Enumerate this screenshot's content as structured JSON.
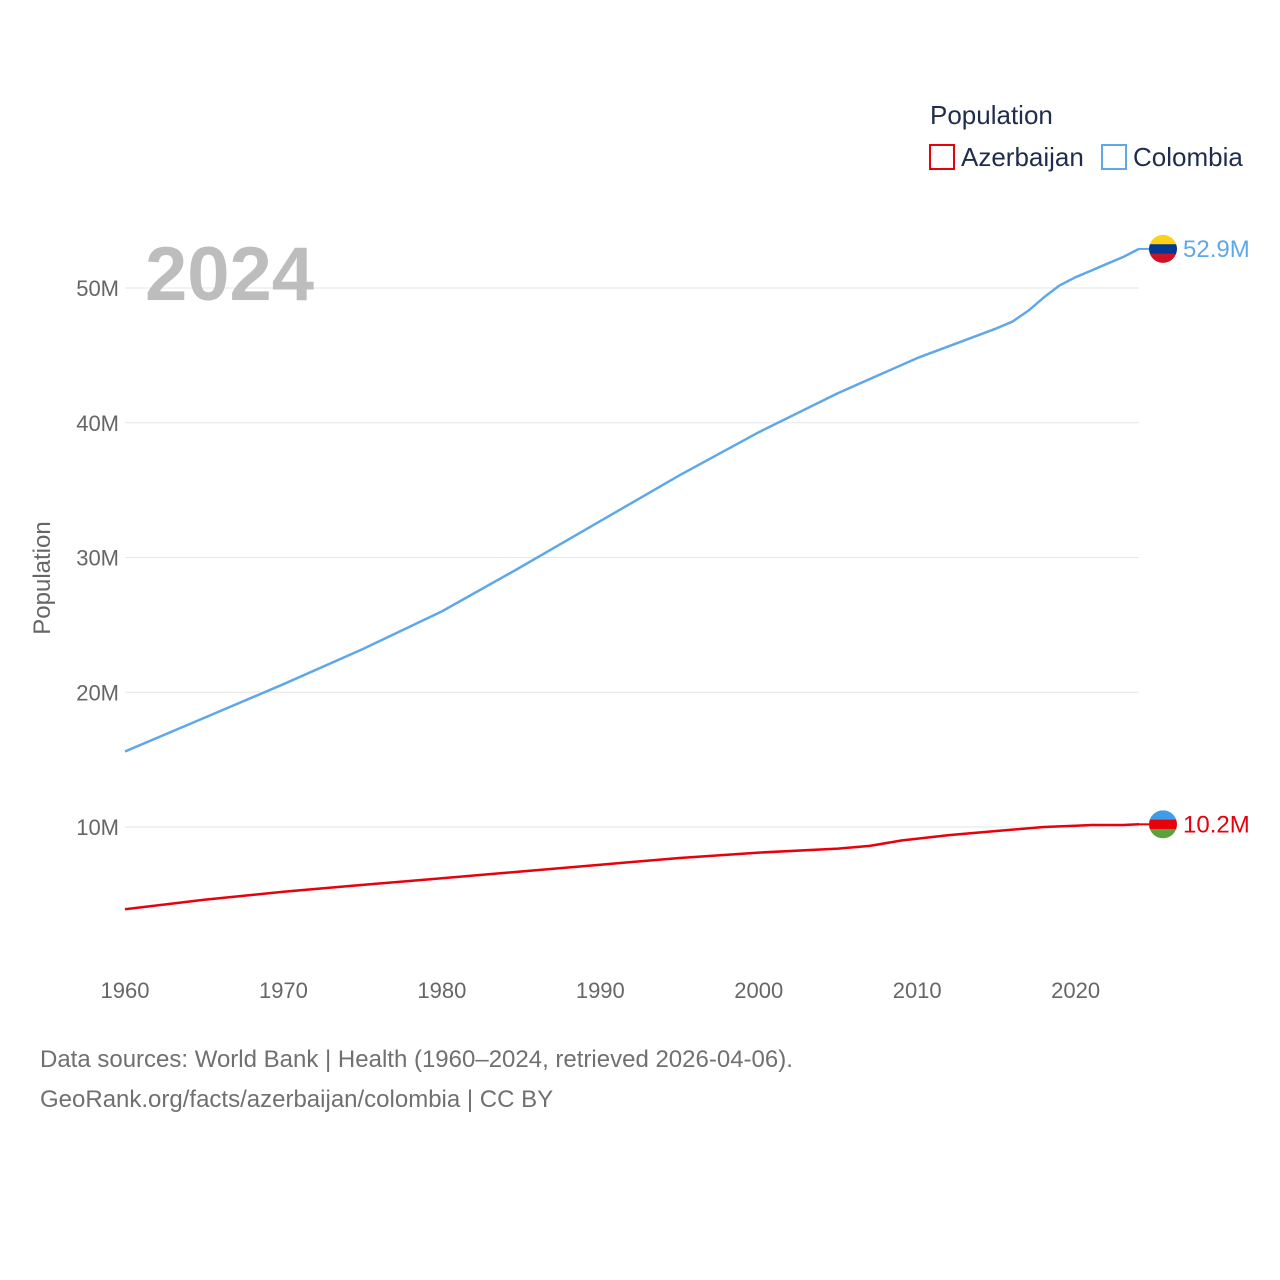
{
  "chart_data": {
    "type": "line",
    "year_label": "2024",
    "legend_title": "Population",
    "ylabel": "Population",
    "xlim": [
      1960,
      2024
    ],
    "ylim": [
      0,
      55000000
    ],
    "x_ticks": [
      1960,
      1970,
      1980,
      1990,
      2000,
      2010,
      2020
    ],
    "x_tick_labels": [
      "1960",
      "1970",
      "1980",
      "1990",
      "2000",
      "2010",
      "2020"
    ],
    "y_ticks": [
      10000000,
      20000000,
      30000000,
      40000000,
      50000000
    ],
    "y_tick_labels": [
      "10M",
      "20M",
      "30M",
      "40M",
      "50M"
    ],
    "series": [
      {
        "name": "Azerbaijan",
        "color": "#e8000b",
        "end_label": "10.2M",
        "flag_colors": [
          "#3f9ce8",
          "#e8000b",
          "#5aa23a"
        ],
        "x": [
          1960,
          1965,
          1970,
          1975,
          1980,
          1985,
          1990,
          1995,
          2000,
          2005,
          2007,
          2009,
          2012,
          2015,
          2018,
          2020,
          2021,
          2022,
          2023,
          2024
        ],
        "values": [
          3900000,
          4600000,
          5200000,
          5700000,
          6200000,
          6700000,
          7200000,
          7700000,
          8100000,
          8400000,
          8600000,
          9000000,
          9400000,
          9700000,
          10000000,
          10100000,
          10150000,
          10150000,
          10150000,
          10200000
        ]
      },
      {
        "name": "Colombia",
        "color": "#5fa8e8",
        "end_label": "52.9M",
        "flag_colors": [
          "#fcd116",
          "#003893",
          "#ce1126"
        ],
        "x": [
          1960,
          1965,
          1970,
          1975,
          1980,
          1985,
          1990,
          1995,
          2000,
          2005,
          2010,
          2015,
          2016,
          2017,
          2018,
          2019,
          2020,
          2021,
          2022,
          2023,
          2024
        ],
        "values": [
          15600000,
          18100000,
          20600000,
          23200000,
          26000000,
          29300000,
          32700000,
          36100000,
          39300000,
          42200000,
          44800000,
          47000000,
          47500000,
          48300000,
          49300000,
          50200000,
          50800000,
          51300000,
          51800000,
          52300000,
          52900000
        ]
      }
    ]
  },
  "footer": {
    "line1": "Data sources: World Bank | Health (1960–2024, retrieved 2026-04-06).",
    "line2": "GeoRank.org/facts/azerbaijan/colombia | CC BY"
  }
}
